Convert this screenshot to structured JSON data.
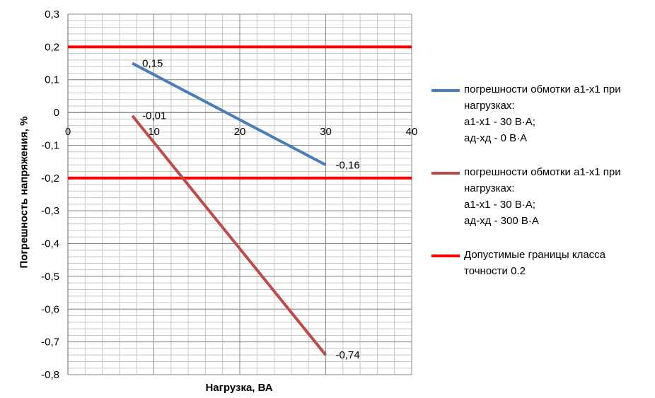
{
  "chart_data": {
    "type": "line",
    "xlabel": "Нагрузка, ВА",
    "ylabel": "Погрешность напряжения, %",
    "xlim": [
      0,
      40
    ],
    "ylim": [
      -0.8,
      0.3
    ],
    "x_ticks": [
      "0",
      "10",
      "20",
      "30",
      "40"
    ],
    "y_ticks": [
      "0,3",
      "0,2",
      "0,1",
      "0",
      "-0,1",
      "-0,2",
      "-0,3",
      "-0,4",
      "-0,5",
      "-0,6",
      "-0,7",
      "-0,8"
    ],
    "grid": true,
    "legend_position": "right",
    "series": [
      {
        "name_lines": [
          "погрешности обмотки а1-х1 при",
          "нагрузках:",
          "а1-х1 - 30 В·А;",
          "ад-хд - 0 В·А"
        ],
        "color": "#4a7ebb",
        "x": [
          7.5,
          30
        ],
        "y": [
          0.15,
          -0.16
        ],
        "labels": [
          "0,15",
          "-0,16"
        ]
      },
      {
        "name_lines": [
          "погрешности обмотки а1-х1 при",
          "нагрузках:",
          "а1-х1 - 30 В·А;",
          "ад-хд - 300 В·А"
        ],
        "color": "#be4b48",
        "x": [
          7.5,
          30
        ],
        "y": [
          -0.01,
          -0.74
        ],
        "labels": [
          "-0,01",
          "-0,74"
        ]
      },
      {
        "name_lines": [
          "Допустимые границы класса",
          "точности 0.2"
        ],
        "color": "#ff0000",
        "limits": [
          0.2,
          -0.2
        ]
      }
    ]
  }
}
